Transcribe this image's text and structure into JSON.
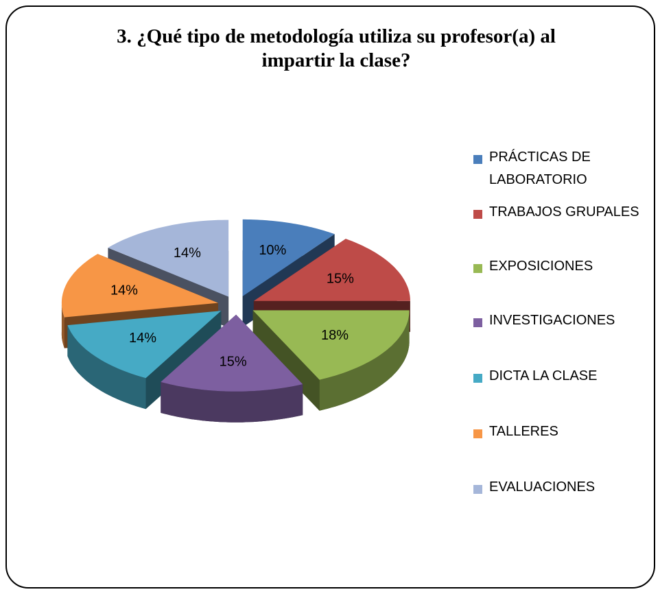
{
  "chart_data": {
    "type": "pie3d",
    "title": "3. ¿Qué tipo de metodología utiliza su profesor(a) al impartir la clase?",
    "categories": [
      "PRÁCTICAS DE LABORATORIO",
      "TRABAJOS GRUPALES",
      "EXPOSICIONES",
      "INVESTIGACIONES",
      "DICTA LA CLASE",
      "TALLERES",
      "EVALUACIONES"
    ],
    "values": [
      10,
      15,
      18,
      15,
      14,
      14,
      14
    ],
    "value_labels": [
      "10%",
      "15%",
      "18%",
      "15%",
      "14%",
      "14%",
      "14%"
    ],
    "colors": [
      "#4a7ebb",
      "#be4b48",
      "#98b954",
      "#7d5fa0",
      "#46aac5",
      "#f79646",
      "#a5b6d9"
    ],
    "legend": "right"
  }
}
